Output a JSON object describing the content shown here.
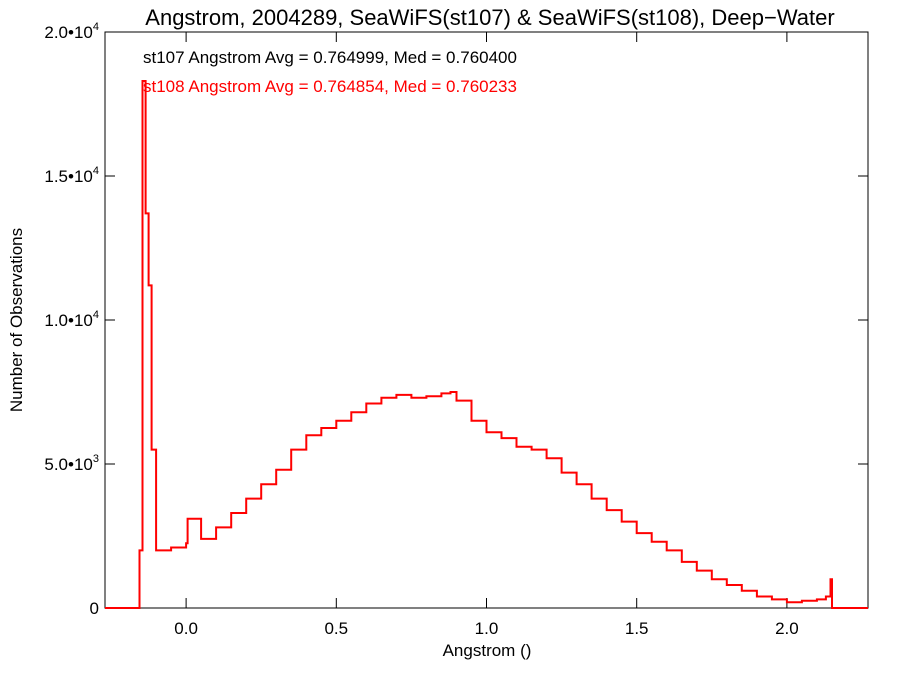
{
  "chart_data": {
    "type": "line",
    "title": "Angstrom, 2004289, SeaWiFS(st107) & SeaWiFS(st108), Deep−Water",
    "xlabel": "Angstrom ()",
    "ylabel": "Number of Observations",
    "xlim": [
      -0.27,
      2.27
    ],
    "ylim": [
      0,
      20000
    ],
    "x_ticks": [
      0.0,
      0.5,
      1.0,
      1.5,
      2.0
    ],
    "x_tick_labels": [
      "0.0",
      "0.5",
      "1.0",
      "1.5",
      "2.0"
    ],
    "y_ticks": [
      0,
      5000,
      10000,
      15000,
      20000
    ],
    "y_tick_labels": [
      "0",
      "5.0•10^3",
      "1.0•10^4",
      "1.5•10^4",
      "2.0•10^4"
    ],
    "annotations": [
      {
        "text": "st107 Angstrom Avg = 0.764999, Med = 0.760400",
        "color": "#000000"
      },
      {
        "text": "st108 Angstrom Avg = 0.764854, Med = 0.760233",
        "color": "#ff0000"
      }
    ],
    "grid": false,
    "series": [
      {
        "color": "#ff0000",
        "x": [
          -0.27,
          -0.16,
          -0.155,
          -0.145,
          -0.135,
          -0.125,
          -0.115,
          -0.1,
          -0.05,
          0.0,
          0.005,
          0.05,
          0.1,
          0.15,
          0.2,
          0.25,
          0.3,
          0.35,
          0.4,
          0.45,
          0.5,
          0.55,
          0.6,
          0.65,
          0.7,
          0.75,
          0.8,
          0.85,
          0.88,
          0.9,
          0.95,
          1.0,
          1.05,
          1.1,
          1.15,
          1.2,
          1.25,
          1.3,
          1.35,
          1.4,
          1.45,
          1.5,
          1.55,
          1.6,
          1.65,
          1.7,
          1.75,
          1.8,
          1.85,
          1.9,
          1.95,
          2.0,
          2.05,
          2.1,
          2.13,
          2.145,
          2.15,
          2.27
        ],
        "y": [
          0,
          0,
          2000,
          18300,
          13700,
          11200,
          5500,
          2000,
          2100,
          2250,
          3100,
          2400,
          2800,
          3300,
          3800,
          4300,
          4800,
          5500,
          6000,
          6250,
          6500,
          6800,
          7100,
          7300,
          7400,
          7300,
          7350,
          7450,
          7500,
          7200,
          6500,
          6100,
          5900,
          5600,
          5500,
          5200,
          4700,
          4300,
          3800,
          3400,
          3000,
          2600,
          2300,
          2000,
          1600,
          1300,
          1000,
          800,
          600,
          400,
          300,
          200,
          250,
          300,
          400,
          1000,
          0,
          0
        ]
      }
    ]
  }
}
